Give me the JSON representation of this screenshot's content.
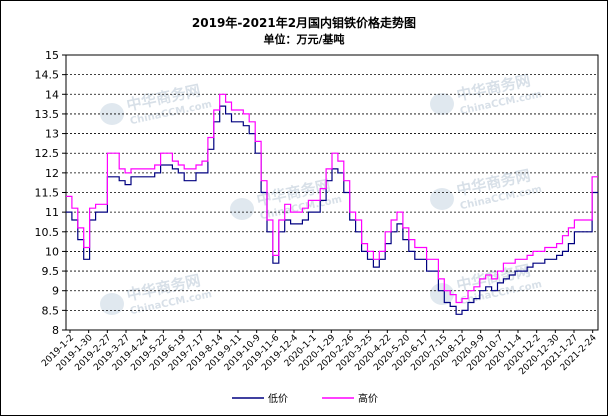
{
  "chart_data": {
    "type": "line",
    "title": "2019年-2021年2月国内钼铁价格走势图",
    "subtitle": "单位：万元/基吨",
    "ylim": [
      8,
      15
    ],
    "yticks": [
      "15",
      "14.5",
      "14",
      "13.5",
      "13",
      "12.5",
      "12",
      "11.5",
      "11",
      "10.5",
      "10",
      "9.5",
      "9",
      "8.5",
      "8"
    ],
    "xtick_labels": [
      "2019-1-2",
      "2019-1-30",
      "2019-2-27",
      "2019-3-27",
      "2019-4-24",
      "2019-5-22",
      "2019-6-19",
      "2019-7-17",
      "2019-8-14",
      "2019-9-11",
      "2019-10-9",
      "2019-11-6",
      "2019-12-4",
      "2020-1-1",
      "2020-1-29",
      "2020-2-26",
      "2020-3-25",
      "2020-4-22",
      "2020-5-20",
      "2020-6-17",
      "2020-7-15",
      "2020-8-12",
      "2020-9-9",
      "2020-10-7",
      "2020-11-4",
      "2020-12-2",
      "2020-12-30",
      "2021-1-27",
      "2021-2-24"
    ],
    "grid": true,
    "legend_position": "bottom",
    "series": [
      {
        "name": "低价",
        "color": "#000080",
        "values": [
          11.0,
          10.8,
          10.3,
          9.8,
          10.8,
          11.0,
          11.0,
          11.9,
          11.9,
          11.8,
          11.7,
          11.9,
          11.9,
          11.9,
          11.9,
          12.0,
          12.2,
          12.2,
          12.1,
          12.0,
          11.8,
          11.8,
          12.0,
          12.0,
          12.6,
          13.3,
          13.7,
          13.5,
          13.3,
          13.3,
          13.2,
          13.0,
          12.5,
          11.5,
          10.5,
          9.7,
          10.5,
          10.8,
          10.7,
          10.7,
          10.8,
          11.0,
          11.0,
          11.3,
          11.8,
          12.1,
          12.0,
          11.5,
          10.8,
          10.5,
          10.0,
          9.8,
          9.6,
          9.8,
          10.2,
          10.5,
          10.7,
          10.3,
          10.0,
          9.8,
          9.8,
          9.5,
          9.5,
          9.0,
          8.7,
          8.6,
          8.4,
          8.5,
          8.7,
          8.8,
          9.0,
          9.1,
          9.0,
          9.2,
          9.3,
          9.4,
          9.5,
          9.5,
          9.6,
          9.7,
          9.7,
          9.8,
          9.8,
          9.9,
          10.0,
          10.2,
          10.5,
          10.5,
          10.5,
          11.5
        ]
      },
      {
        "name": "高价",
        "color": "#ff00ff",
        "values": [
          11.4,
          11.1,
          10.6,
          10.1,
          11.1,
          11.2,
          11.2,
          12.5,
          12.5,
          12.1,
          12.0,
          12.1,
          12.1,
          12.1,
          12.1,
          12.2,
          12.5,
          12.5,
          12.3,
          12.2,
          12.1,
          12.1,
          12.2,
          12.3,
          12.9,
          13.6,
          14.0,
          13.8,
          13.6,
          13.6,
          13.5,
          13.3,
          12.8,
          11.8,
          10.8,
          9.9,
          10.8,
          11.2,
          11.0,
          11.0,
          11.1,
          11.3,
          11.3,
          11.6,
          12.1,
          12.5,
          12.3,
          11.8,
          11.0,
          10.8,
          10.2,
          10.0,
          9.8,
          10.0,
          10.5,
          10.8,
          11.0,
          10.6,
          10.3,
          10.1,
          10.1,
          9.8,
          9.8,
          9.3,
          9.0,
          8.9,
          8.7,
          8.8,
          9.0,
          9.1,
          9.3,
          9.4,
          9.3,
          9.5,
          9.7,
          9.7,
          9.8,
          9.8,
          9.9,
          10.0,
          10.0,
          10.1,
          10.1,
          10.2,
          10.4,
          10.6,
          10.8,
          10.8,
          10.8,
          11.9
        ]
      }
    ]
  },
  "watermark": {
    "cn": "中华商务网",
    "en": "ChinaCCM.com"
  }
}
